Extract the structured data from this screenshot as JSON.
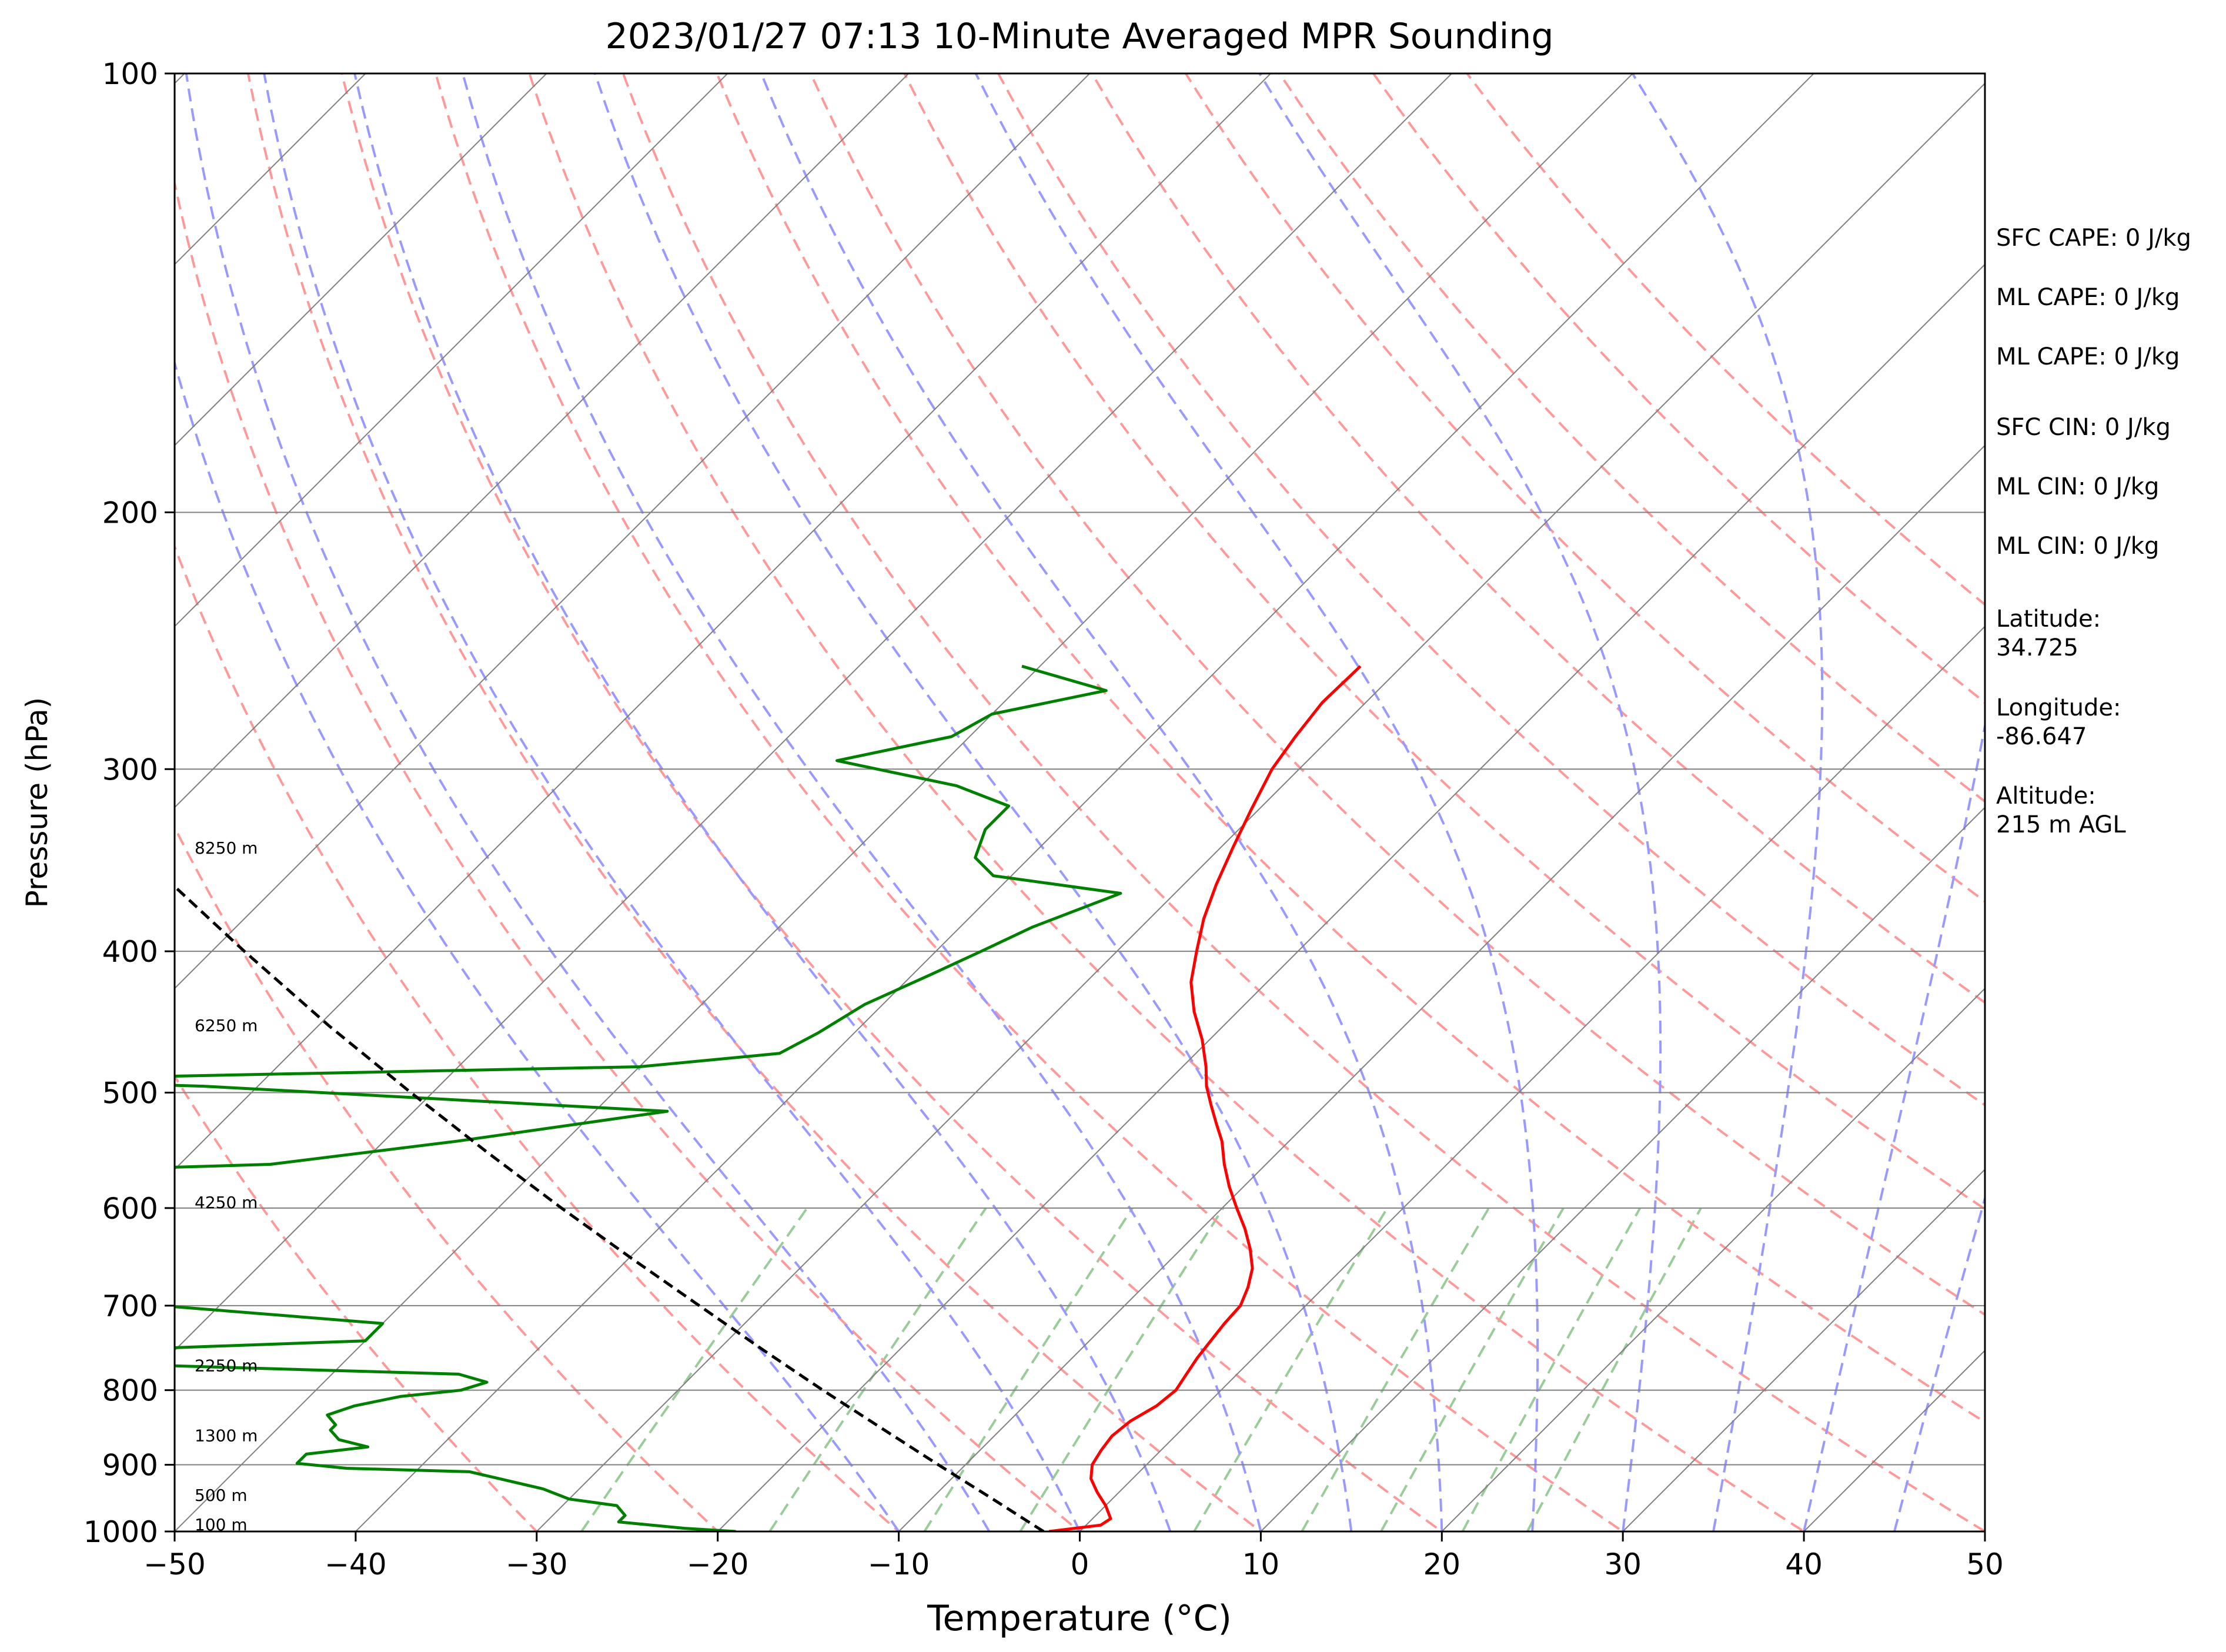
{
  "chart_data": {
    "type": "line",
    "title": "2023/01/27 07:13 10-Minute Averaged MPR Sounding",
    "xlabel": "Temperature (°C)",
    "ylabel": "Pressure (hPa)",
    "xlim": [
      -50,
      50
    ],
    "ylim": [
      1000,
      100
    ],
    "y_scale": "log",
    "x_ticks": [
      "−50",
      "−40",
      "−30",
      "−20",
      "−10",
      "0",
      "10",
      "20",
      "30",
      "40",
      "50"
    ],
    "x_tick_values": [
      -50,
      -40,
      -30,
      -20,
      -10,
      0,
      10,
      20,
      30,
      40,
      50
    ],
    "y_ticks": [
      "100",
      "200",
      "300",
      "400",
      "500",
      "600",
      "700",
      "800",
      "900",
      "1000"
    ],
    "y_tick_values": [
      100,
      200,
      300,
      400,
      500,
      600,
      700,
      800,
      900,
      1000
    ],
    "grid": true,
    "series": [
      {
        "role": "temperature",
        "color": "#ff0000",
        "points": [
          [
            1000,
            -1.7
          ],
          [
            990,
            0.8
          ],
          [
            980,
            1.0
          ],
          [
            960,
            0.0
          ],
          [
            940,
            -1.2
          ],
          [
            920,
            -2.3
          ],
          [
            900,
            -3.0
          ],
          [
            880,
            -3.3
          ],
          [
            860,
            -3.5
          ],
          [
            840,
            -3.3
          ],
          [
            820,
            -2.7
          ],
          [
            800,
            -2.5
          ],
          [
            780,
            -2.8
          ],
          [
            760,
            -3.1
          ],
          [
            740,
            -3.3
          ],
          [
            720,
            -3.5
          ],
          [
            700,
            -3.6
          ],
          [
            680,
            -4.2
          ],
          [
            660,
            -5.0
          ],
          [
            640,
            -6.2
          ],
          [
            620,
            -7.6
          ],
          [
            600,
            -9.2
          ],
          [
            580,
            -10.8
          ],
          [
            560,
            -12.3
          ],
          [
            540,
            -13.7
          ],
          [
            525,
            -15.0
          ],
          [
            510,
            -16.3
          ],
          [
            495,
            -17.6
          ],
          [
            480,
            -18.7
          ],
          [
            460,
            -20.4
          ],
          [
            440,
            -22.4
          ],
          [
            420,
            -24.2
          ],
          [
            400,
            -25.6
          ],
          [
            380,
            -27.0
          ],
          [
            360,
            -28.2
          ],
          [
            340,
            -29.3
          ],
          [
            320,
            -30.4
          ],
          [
            300,
            -31.5
          ],
          [
            285,
            -32.0
          ],
          [
            270,
            -32.4
          ],
          [
            255,
            -32.3
          ]
        ]
      },
      {
        "role": "dewpoint",
        "color": "#008000",
        "points": [
          [
            1000,
            -19.0
          ],
          [
            995,
            -22.0
          ],
          [
            985,
            -26.0
          ],
          [
            975,
            -26.0
          ],
          [
            960,
            -27.0
          ],
          [
            950,
            -30.0
          ],
          [
            935,
            -32.0
          ],
          [
            910,
            -37.0
          ],
          [
            905,
            -44.0
          ],
          [
            898,
            -47.0
          ],
          [
            885,
            -47.0
          ],
          [
            875,
            -44.0
          ],
          [
            865,
            -46.0
          ],
          [
            852,
            -47.0
          ],
          [
            845,
            -47.0
          ],
          [
            832,
            -48.0
          ],
          [
            820,
            -47.0
          ],
          [
            808,
            -45.0
          ],
          [
            800,
            -42.0
          ],
          [
            790,
            -41.0
          ],
          [
            780,
            -43.0
          ],
          [
            760,
            -75.0
          ],
          [
            740,
            -50.0
          ],
          [
            720,
            -50.0
          ],
          [
            690,
            -70.0
          ],
          [
            683,
            -80.0
          ],
          [
            570,
            -85.0
          ],
          [
            560,
            -65.0
          ],
          [
            540,
            -56.0
          ],
          [
            515,
            -46.0
          ],
          [
            495,
            -73.0
          ],
          [
            490,
            -85.0
          ],
          [
            480,
            -50.0
          ],
          [
            470,
            -43.0
          ],
          [
            455,
            -42.0
          ],
          [
            435,
            -41.0
          ],
          [
            415,
            -39.0
          ],
          [
            400,
            -37.5
          ],
          [
            385,
            -36.0
          ],
          [
            365,
            -33.0
          ],
          [
            355,
            -41.0
          ],
          [
            345,
            -43.0
          ],
          [
            330,
            -44.0
          ],
          [
            318,
            -44.0
          ],
          [
            308,
            -48.0
          ],
          [
            296,
            -56.0
          ],
          [
            285,
            -51.0
          ],
          [
            275,
            -50.0
          ],
          [
            265,
            -45.0
          ],
          [
            255,
            -51.0
          ]
        ]
      },
      {
        "role": "parcel",
        "color": "#000000",
        "points": [
          [
            1000,
            -2
          ],
          [
            950,
            -6.6
          ],
          [
            900,
            -11.5
          ],
          [
            850,
            -16.6
          ],
          [
            800,
            -22.0
          ],
          [
            750,
            -27.6
          ],
          [
            700,
            -33.5
          ],
          [
            650,
            -39.8
          ],
          [
            600,
            -46.5
          ],
          [
            550,
            -53.6
          ],
          [
            500,
            -61.2
          ],
          [
            450,
            -69.4
          ],
          [
            400,
            -78.2
          ],
          [
            350,
            -87.9
          ],
          [
            300,
            -98.4
          ]
        ]
      }
    ],
    "height_labels": [
      {
        "text": "100 m",
        "pressure": 990
      },
      {
        "text": "500 m",
        "pressure": 945
      },
      {
        "text": "1300 m",
        "pressure": 860
      },
      {
        "text": "2250 m",
        "pressure": 770
      },
      {
        "text": "4250 m",
        "pressure": 595
      },
      {
        "text": "6250 m",
        "pressure": 450
      },
      {
        "text": "8250 m",
        "pressure": 340
      }
    ],
    "dry_adiabats_c": [
      -30,
      -20,
      -10,
      0,
      10,
      20,
      30,
      40,
      50,
      60,
      70,
      80,
      90,
      100,
      110,
      120,
      130,
      140
    ],
    "moist_adiabats_c": [
      -10,
      -5,
      0,
      5,
      10,
      15,
      20,
      25,
      30,
      35,
      40,
      45
    ],
    "mixing_ratios_gkg": [
      0.4,
      1,
      2,
      3,
      6,
      9,
      12,
      16,
      20
    ],
    "colors": {
      "isotherm": "#808080",
      "dry_adiabat": "#ff9999",
      "moist_adiabat": "#9999ff",
      "mixing_ratio": "#99cc99"
    }
  },
  "stats": [
    {
      "label": "SFC CAPE: 0 J/kg"
    },
    {
      "label": "ML CAPE: 0 J/kg"
    },
    {
      "label": "ML CAPE: 0 J/kg"
    },
    {
      "label": "SFC CIN: 0 J/kg"
    },
    {
      "label": "ML CIN: 0 J/kg"
    },
    {
      "label": "ML CIN: 0 J/kg"
    },
    {
      "label": "Latitude:",
      "value": "34.725"
    },
    {
      "label": "Longitude:",
      "value": "-86.647"
    },
    {
      "label": "Altitude:",
      "value": "215 m AGL"
    }
  ]
}
